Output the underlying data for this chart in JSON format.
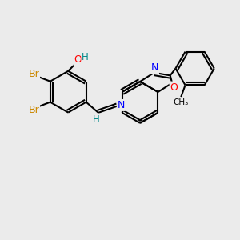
{
  "background_color": "#ebebeb",
  "bond_color": "#000000",
  "bond_width": 1.5,
  "atom_colors": {
    "Br": "#cc8800",
    "O": "#ff0000",
    "N": "#0000ff",
    "H": "#008888",
    "C": "#000000"
  },
  "figsize": [
    3.0,
    3.0
  ],
  "dpi": 100
}
